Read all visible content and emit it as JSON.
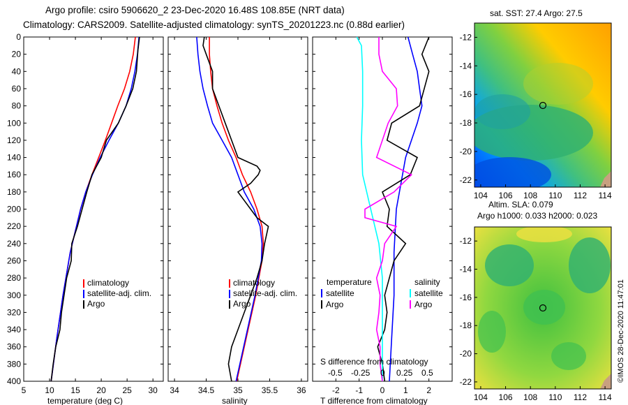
{
  "titles": {
    "line1": "Argo profile: csiro 5906620_2 23-Dec-2020 16.48S 108.85E (NRT data)",
    "line2": "Climatology: CARS2009. Satellite-adjusted climatology: synTS_20201223.nc (0.88d earlier)"
  },
  "colors": {
    "climatology": "#ff0000",
    "satellite": "#0000ff",
    "argo": "#000000",
    "sat_salinity": "#00ffff",
    "argo_salinity": "#ff00ff"
  },
  "chart_data": [
    {
      "type": "line",
      "name": "temperature-profile",
      "xlabel": "temperature (deg C)",
      "xlim": [
        5,
        32
      ],
      "xticks": [
        5,
        10,
        15,
        20,
        25,
        30
      ],
      "ylim": [
        400,
        0
      ],
      "yticks": [
        0,
        20,
        40,
        60,
        80,
        100,
        120,
        140,
        160,
        180,
        200,
        220,
        240,
        260,
        280,
        300,
        320,
        340,
        360,
        380,
        400
      ],
      "legend": [
        "climatology",
        "satellite-adj. clim.",
        "Argo"
      ],
      "series": [
        {
          "name": "climatology",
          "color": "#ff0000",
          "depth": [
            0,
            20,
            40,
            60,
            80,
            100,
            120,
            140,
            160,
            180,
            200,
            250,
            300,
            350,
            400
          ],
          "values": [
            26.6,
            26.2,
            25.5,
            24.5,
            23.2,
            22,
            20.8,
            19.5,
            18.2,
            17,
            16,
            14,
            12.6,
            11.4,
            10.3
          ]
        },
        {
          "name": "satellite-adj. clim.",
          "color": "#0000ff",
          "depth": [
            0,
            20,
            40,
            60,
            80,
            100,
            120,
            140,
            160,
            180,
            200,
            250,
            300,
            350,
            400
          ],
          "values": [
            27.3,
            27,
            26.5,
            25.8,
            24.8,
            23.3,
            21.5,
            19.8,
            18.3,
            17,
            16,
            14,
            12.6,
            11.4,
            10.3
          ]
        },
        {
          "name": "Argo",
          "color": "#000000",
          "depth": [
            0,
            15,
            40,
            60,
            80,
            100,
            120,
            140,
            160,
            180,
            200,
            220,
            240,
            260,
            280,
            300,
            320,
            340,
            360,
            380,
            400
          ],
          "values": [
            27.4,
            27.1,
            26.8,
            26.1,
            24.8,
            23.3,
            21,
            20,
            18.2,
            17.2,
            16.3,
            15.4,
            14.3,
            14.2,
            13.3,
            12.8,
            12.3,
            12,
            11.2,
            10.7,
            10.3
          ]
        }
      ]
    },
    {
      "type": "line",
      "name": "salinity-profile",
      "xlabel": "salinity",
      "xlim": [
        33.9,
        36.1
      ],
      "xticks": [
        34,
        34.5,
        35,
        35.5,
        36
      ],
      "legend": [
        "climatology",
        "satellite-adj. clim.",
        "Argo"
      ],
      "series": [
        {
          "name": "climatology",
          "color": "#ff0000",
          "depth": [
            0,
            20,
            40,
            60,
            80,
            100,
            120,
            140,
            160,
            180,
            200,
            220,
            240,
            260,
            280,
            300,
            350,
            400
          ],
          "values": [
            34.55,
            34.55,
            34.57,
            34.6,
            34.67,
            34.75,
            34.85,
            34.97,
            35.07,
            35.2,
            35.3,
            35.38,
            35.4,
            35.38,
            35.33,
            35.28,
            35.13,
            34.98
          ]
        },
        {
          "name": "satellite-adj. clim.",
          "color": "#0000ff",
          "depth": [
            0,
            20,
            40,
            60,
            80,
            100,
            120,
            140,
            160,
            180,
            200,
            220,
            240,
            260,
            280,
            300,
            350,
            400
          ],
          "values": [
            34.35,
            34.37,
            34.4,
            34.45,
            34.52,
            34.6,
            34.75,
            34.9,
            35,
            35.1,
            35.25,
            35.35,
            35.38,
            35.37,
            35.32,
            35.27,
            35.12,
            34.97
          ]
        },
        {
          "name": "Argo",
          "color": "#000000",
          "depth": [
            0,
            10,
            20,
            40,
            60,
            80,
            100,
            120,
            140,
            150,
            155,
            160,
            170,
            180,
            190,
            200,
            210,
            220,
            240,
            260,
            280,
            300,
            320,
            340,
            360,
            380,
            400
          ],
          "values": [
            34.47,
            34.45,
            34.5,
            34.6,
            34.6,
            34.7,
            34.8,
            34.9,
            35.0,
            35.3,
            35.35,
            35.32,
            35.2,
            35.0,
            35.1,
            35.2,
            35.3,
            35.48,
            35.42,
            35.38,
            35.3,
            35.2,
            35.1,
            35.0,
            34.9,
            34.85,
            34.9
          ]
        }
      ]
    },
    {
      "type": "line",
      "name": "difference-profile",
      "xlabel": "T difference from climatology",
      "xlim": [
        -3,
        3
      ],
      "xticks": [
        -2,
        -1,
        0,
        1,
        2
      ],
      "x2label": "S difference from climatology",
      "x2ticks": [
        "-0.5",
        "-0.25",
        "0",
        "0.25",
        "0.5"
      ],
      "legend_temperature": {
        "title": "temperature",
        "items": [
          "satellite",
          "Argo"
        ]
      },
      "legend_salinity": {
        "title": "salinity",
        "items": [
          "satellite",
          "Argo"
        ]
      },
      "series": [
        {
          "name": "T satellite",
          "color": "#0000ff",
          "depth": [
            0,
            20,
            40,
            60,
            80,
            100,
            140,
            200,
            250,
            300,
            350,
            400
          ],
          "values": [
            1.1,
            1.3,
            1.5,
            1.6,
            1.7,
            1.5,
            1.0,
            0.6,
            0.5,
            0.5,
            0.4,
            0.3
          ]
        },
        {
          "name": "T Argo",
          "color": "#000000",
          "depth": [
            0,
            20,
            40,
            80,
            100,
            120,
            140,
            160,
            180,
            200,
            220,
            240,
            260,
            280,
            300,
            320,
            340,
            360,
            380,
            400
          ],
          "values": [
            2.0,
            1.7,
            2.0,
            1.6,
            0.4,
            0.2,
            1.5,
            1.2,
            0,
            0.3,
            0.2,
            1.0,
            0.5,
            0.3,
            0.1,
            0.2,
            0.1,
            -0.2,
            0,
            0.1
          ]
        },
        {
          "name": "S satellite",
          "color": "#00ffff",
          "depth": [
            0,
            10,
            40,
            80,
            120,
            160,
            200,
            240,
            280,
            320,
            360,
            400
          ],
          "values": [
            -0.22,
            -0.18,
            -0.17,
            -0.17,
            -0.18,
            -0.17,
            -0.1,
            -0.03,
            0,
            0,
            0,
            0
          ]
        },
        {
          "name": "S Argo",
          "color": "#ff00ff",
          "depth": [
            0,
            20,
            40,
            60,
            80,
            100,
            120,
            140,
            160,
            180,
            200,
            210,
            220,
            240,
            260,
            280,
            300,
            320,
            340,
            360,
            380,
            400
          ],
          "values": [
            -0.03,
            -0.03,
            0,
            0.12,
            0.13,
            0.05,
            0,
            -0.05,
            0.25,
            0.1,
            -0.15,
            -0.15,
            0.12,
            0.02,
            0,
            -0.05,
            -0.02,
            -0.03,
            -0.05,
            -0.02,
            -0.02,
            0
          ]
        }
      ]
    },
    {
      "type": "heatmap",
      "name": "sst-map",
      "title": "sat. SST: 27.4 Argo: 27.5",
      "xticks": [
        104,
        106,
        108,
        110,
        112,
        114
      ],
      "yticks": [
        -12,
        -14,
        -16,
        -18,
        -20,
        -22
      ],
      "xlim": [
        103.5,
        114.5
      ],
      "ylim": [
        -22.5,
        -11
      ],
      "marker": {
        "lon": 108.85,
        "lat": -16.48
      }
    },
    {
      "type": "heatmap",
      "name": "sla-map",
      "title_line1": "Altim. SLA: 0.079",
      "title_line2": "Argo h1000: 0.033 h2000: 0.023",
      "xticks": [
        104,
        106,
        108,
        110,
        112,
        114
      ],
      "yticks": [
        -12,
        -14,
        -16,
        -18,
        -20,
        -22
      ],
      "xlim": [
        103.5,
        114.5
      ],
      "ylim": [
        -22.5,
        -11
      ],
      "marker": {
        "lon": 108.85,
        "lat": -16.48
      }
    }
  ],
  "stamp": "©IMOS 28-Dec-2020 11:47:01"
}
